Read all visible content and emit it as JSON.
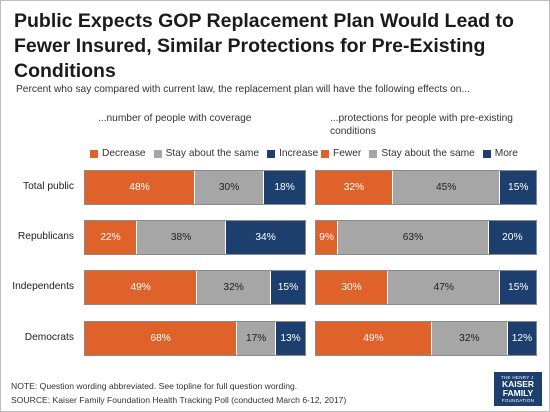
{
  "title": "Public Expects GOP Replacement Plan Would Lead to Fewer Insured, Similar Protections for Pre-Existing Conditions",
  "subtitle": "Percent who say compared with current law, the replacement plan will have the following effects on...",
  "colors": {
    "orange": "#e0622b",
    "gray": "#a6a6a6",
    "navy": "#1c3f6e"
  },
  "chart_data": [
    {
      "type": "bar",
      "stacked": true,
      "orientation": "horizontal",
      "title": "...number of people with coverage",
      "categories": [
        "Total public",
        "Republicans",
        "Independents",
        "Democrats"
      ],
      "series": [
        {
          "name": "Decrease",
          "values": [
            48,
            22,
            49,
            68
          ]
        },
        {
          "name": "Stay about the same",
          "values": [
            30,
            38,
            32,
            17
          ]
        },
        {
          "name": "Increase",
          "values": [
            18,
            34,
            15,
            13
          ]
        }
      ],
      "legend": "top"
    },
    {
      "type": "bar",
      "stacked": true,
      "orientation": "horizontal",
      "title": "...protections for people with pre-existing conditions",
      "categories": [
        "Total public",
        "Republicans",
        "Independents",
        "Democrats"
      ],
      "series": [
        {
          "name": "Fewer",
          "values": [
            32,
            9,
            30,
            49
          ]
        },
        {
          "name": "Stay about the same",
          "values": [
            45,
            63,
            47,
            32
          ]
        },
        {
          "name": "More",
          "values": [
            15,
            20,
            15,
            12
          ]
        }
      ],
      "legend": "top"
    }
  ],
  "note": "NOTE: Question wording abbreviated. See topline for full question wording.",
  "source": "SOURCE: Kaiser Family Foundation Health Tracking Poll (conducted March 6-12, 2017)",
  "logo": {
    "line1": "THE HENRY J.",
    "line2a": "KAISER",
    "line2b": "FAMILY",
    "line3": "FOUNDATION"
  }
}
